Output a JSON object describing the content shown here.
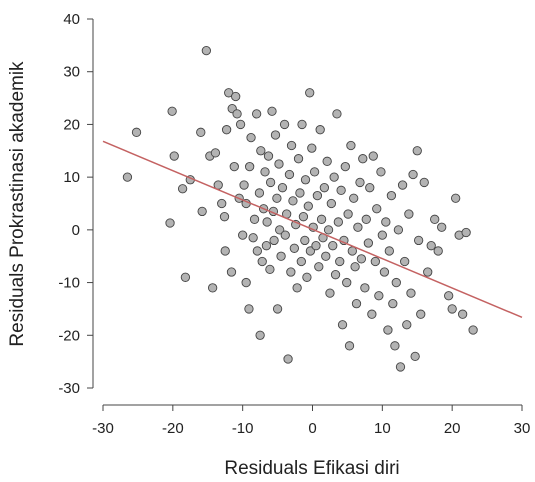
{
  "chart_data": {
    "type": "scatter",
    "title": "",
    "xlabel": "Residuals Efikasi diri",
    "ylabel": "Residuals Prokrastinasi akademik",
    "xlim": [
      -30,
      30
    ],
    "ylim": [
      -30,
      40
    ],
    "xticks": [
      "-30",
      "-20",
      "-10",
      "0",
      "10",
      "20",
      "30"
    ],
    "yticks": [
      "-30",
      "-20",
      "-10",
      "0",
      "10",
      "20",
      "30",
      "40"
    ],
    "xtick_values": [
      -30,
      -20,
      -10,
      0,
      10,
      20,
      30
    ],
    "ytick_values": [
      -30,
      -20,
      -10,
      0,
      10,
      20,
      30,
      40
    ],
    "grid": false,
    "legend": "none",
    "point_fill": "#b3b3b3",
    "point_stroke": "#444444",
    "regression_color": "#c46262",
    "regression_line": {
      "x": [
        -30,
        30
      ],
      "y": [
        16.8,
        -16.6
      ]
    },
    "series": [
      {
        "points": [
          [
            -26.5,
            10.0
          ],
          [
            -25.2,
            18.5
          ],
          [
            -20.1,
            22.5
          ],
          [
            -19.8,
            14.0
          ],
          [
            -20.4,
            1.3
          ],
          [
            -18.6,
            7.8
          ],
          [
            -18.2,
            -9.0
          ],
          [
            -17.5,
            9.5
          ],
          [
            -16.0,
            18.5
          ],
          [
            -15.8,
            3.5
          ],
          [
            -15.2,
            34.0
          ],
          [
            -14.7,
            14.0
          ],
          [
            -14.3,
            -11.0
          ],
          [
            -13.9,
            14.6
          ],
          [
            -13.5,
            8.5
          ],
          [
            -13.0,
            5.0
          ],
          [
            -12.5,
            -4.0
          ],
          [
            -12.6,
            2.5
          ],
          [
            -12.0,
            26.0
          ],
          [
            -12.3,
            19.0
          ],
          [
            -11.5,
            23.0
          ],
          [
            -11.6,
            -8.0
          ],
          [
            -11.2,
            12.0
          ],
          [
            -11.0,
            25.3
          ],
          [
            -10.8,
            22.0
          ],
          [
            -10.5,
            6.0
          ],
          [
            -10.3,
            20.0
          ],
          [
            -10.0,
            -1.0
          ],
          [
            -9.8,
            8.5
          ],
          [
            -9.5,
            5.0
          ],
          [
            -9.5,
            -10.0
          ],
          [
            -9.1,
            -15.0
          ],
          [
            -9.0,
            12.0
          ],
          [
            -8.8,
            17.5
          ],
          [
            -8.5,
            -1.5
          ],
          [
            -8.3,
            2.0
          ],
          [
            -8.0,
            22.0
          ],
          [
            -7.9,
            -4.0
          ],
          [
            -7.6,
            7.0
          ],
          [
            -7.5,
            -20.0
          ],
          [
            -7.4,
            15.0
          ],
          [
            -7.2,
            -6.0
          ],
          [
            -7.0,
            4.0
          ],
          [
            -6.8,
            11.0
          ],
          [
            -6.6,
            -3.0
          ],
          [
            -6.5,
            1.5
          ],
          [
            -6.3,
            14.0
          ],
          [
            -6.1,
            -7.5
          ],
          [
            -6.0,
            9.0
          ],
          [
            -5.8,
            22.5
          ],
          [
            -5.6,
            3.5
          ],
          [
            -5.5,
            -2.0
          ],
          [
            -5.3,
            18.0
          ],
          [
            -5.1,
            6.0
          ],
          [
            -5.0,
            -15.0
          ],
          [
            -4.8,
            12.5
          ],
          [
            -4.7,
            0.0
          ],
          [
            -4.5,
            -5.0
          ],
          [
            -4.3,
            8.0
          ],
          [
            -4.0,
            20.0
          ],
          [
            -3.9,
            -1.0
          ],
          [
            -3.7,
            3.0
          ],
          [
            -3.5,
            -24.5
          ],
          [
            -3.3,
            10.5
          ],
          [
            -3.1,
            -8.0
          ],
          [
            -3.0,
            16.0
          ],
          [
            -2.8,
            5.5
          ],
          [
            -2.6,
            -3.5
          ],
          [
            -2.4,
            1.0
          ],
          [
            -2.2,
            -11.0
          ],
          [
            -2.0,
            13.5
          ],
          [
            -1.8,
            7.0
          ],
          [
            -1.6,
            -6.0
          ],
          [
            -1.5,
            20.0
          ],
          [
            -1.3,
            2.5
          ],
          [
            -1.1,
            -2.0
          ],
          [
            -1.0,
            9.5
          ],
          [
            -0.8,
            -9.0
          ],
          [
            -0.6,
            4.5
          ],
          [
            -0.4,
            26.0
          ],
          [
            -0.3,
            -4.0
          ],
          [
            -0.1,
            15.5
          ],
          [
            0.1,
            0.5
          ],
          [
            0.3,
            11.0
          ],
          [
            0.5,
            -3.0
          ],
          [
            0.7,
            6.5
          ],
          [
            0.9,
            -7.0
          ],
          [
            1.1,
            19.0
          ],
          [
            1.3,
            2.0
          ],
          [
            1.5,
            -1.5
          ],
          [
            1.7,
            8.0
          ],
          [
            1.9,
            -5.0
          ],
          [
            2.1,
            13.0
          ],
          [
            2.3,
            0.0
          ],
          [
            2.5,
            -12.0
          ],
          [
            2.7,
            5.0
          ],
          [
            2.9,
            -3.0
          ],
          [
            3.1,
            10.0
          ],
          [
            3.3,
            -8.5
          ],
          [
            3.5,
            22.0
          ],
          [
            3.7,
            1.5
          ],
          [
            3.9,
            -6.0
          ],
          [
            4.1,
            7.5
          ],
          [
            4.3,
            -18.0
          ],
          [
            4.5,
            -2.0
          ],
          [
            4.7,
            12.0
          ],
          [
            4.9,
            -10.0
          ],
          [
            5.1,
            3.0
          ],
          [
            5.3,
            -22.0
          ],
          [
            5.5,
            16.0
          ],
          [
            5.7,
            -4.0
          ],
          [
            5.9,
            6.0
          ],
          [
            6.1,
            -7.0
          ],
          [
            6.3,
            -14.0
          ],
          [
            6.5,
            0.5
          ],
          [
            6.8,
            9.0
          ],
          [
            7.0,
            -5.5
          ],
          [
            7.2,
            13.5
          ],
          [
            7.5,
            -11.0
          ],
          [
            7.7,
            2.0
          ],
          [
            8.0,
            -2.5
          ],
          [
            8.2,
            8.0
          ],
          [
            8.5,
            -16.0
          ],
          [
            8.7,
            14.0
          ],
          [
            9.0,
            -6.0
          ],
          [
            9.2,
            4.0
          ],
          [
            9.5,
            -12.5
          ],
          [
            9.8,
            11.0
          ],
          [
            10.0,
            -1.0
          ],
          [
            10.3,
            -8.0
          ],
          [
            10.5,
            1.5
          ],
          [
            10.8,
            -19.0
          ],
          [
            11.0,
            -4.0
          ],
          [
            11.3,
            6.5
          ],
          [
            11.5,
            -14.0
          ],
          [
            11.8,
            -22.0
          ],
          [
            12.0,
            -10.0
          ],
          [
            12.3,
            0.0
          ],
          [
            12.6,
            -26.0
          ],
          [
            12.9,
            8.5
          ],
          [
            13.2,
            -6.0
          ],
          [
            13.5,
            -18.0
          ],
          [
            13.8,
            3.0
          ],
          [
            14.1,
            -12.0
          ],
          [
            14.4,
            10.5
          ],
          [
            14.7,
            -24.0
          ],
          [
            15.0,
            15.0
          ],
          [
            15.2,
            -2.0
          ],
          [
            15.5,
            -16.0
          ],
          [
            16.0,
            9.0
          ],
          [
            16.5,
            -8.0
          ],
          [
            17.0,
            -3.0
          ],
          [
            17.5,
            2.0
          ],
          [
            18.0,
            -4.0
          ],
          [
            18.5,
            0.5
          ],
          [
            19.5,
            -12.5
          ],
          [
            20.0,
            -15.0
          ],
          [
            20.5,
            6.0
          ],
          [
            21.0,
            -1.0
          ],
          [
            21.5,
            -16.0
          ],
          [
            22.0,
            -0.5
          ],
          [
            23.0,
            -19.0
          ]
        ]
      }
    ]
  }
}
